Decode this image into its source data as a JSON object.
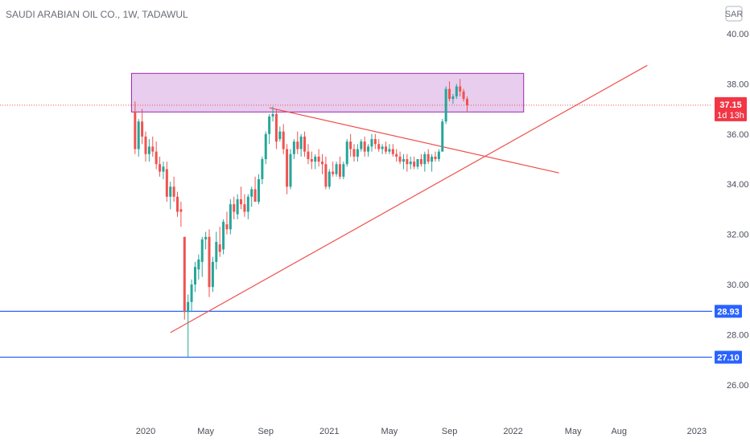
{
  "title": "SAUDI ARABIAN OIL CO., 1W, TADAWUL",
  "currency_label": "SAR",
  "price_tag": {
    "value": "37.15",
    "countdown": "1d 13h",
    "color": "#f23645"
  },
  "colors": {
    "up": "#26a69a",
    "down": "#ef5350",
    "hline": "#2962ff",
    "trend": "#f0504c",
    "zone_fill": "#e8cdee",
    "zone_stroke": "#9c27b0",
    "axis_text": "#4a4e5a"
  },
  "chart_data": {
    "type": "candlestick",
    "title": "SAUDI ARABIAN OIL CO., 1W, TADAWUL",
    "ylim": [
      25.5,
      40.5
    ],
    "y_ticks": [
      "26.00",
      "28.00",
      "30.00",
      "32.00",
      "34.00",
      "36.00",
      "38.00",
      "40.00"
    ],
    "x_ticks": [
      {
        "label": "2020",
        "x": 0
      },
      {
        "label": "May",
        "x": 17
      },
      {
        "label": "Sep",
        "x": 34
      },
      {
        "label": "2021",
        "x": 52
      },
      {
        "label": "May",
        "x": 69
      },
      {
        "label": "Sep",
        "x": 86
      },
      {
        "label": "2022",
        "x": 104
      },
      {
        "label": "May",
        "x": 121
      },
      {
        "label": "Aug",
        "x": 134
      },
      {
        "label": "2023",
        "x": 156
      }
    ],
    "candles": [
      [
        -3,
        36.9,
        37.3,
        35.2,
        35.4
      ],
      [
        -2,
        35.4,
        36.6,
        35.1,
        36.5
      ],
      [
        -1,
        36.5,
        37.0,
        35.6,
        35.9
      ],
      [
        0,
        35.9,
        36.1,
        34.9,
        35.2
      ],
      [
        1,
        35.2,
        35.8,
        34.9,
        35.5
      ],
      [
        2,
        35.5,
        35.9,
        35.1,
        35.3
      ],
      [
        3,
        35.3,
        35.7,
        34.6,
        34.8
      ],
      [
        4,
        34.8,
        35.1,
        34.3,
        34.5
      ],
      [
        5,
        34.5,
        34.9,
        34.2,
        34.7
      ],
      [
        6,
        34.6,
        34.9,
        33.3,
        33.5
      ],
      [
        7,
        33.5,
        34.1,
        33.0,
        33.9
      ],
      [
        8,
        33.9,
        34.3,
        33.3,
        33.5
      ],
      [
        9,
        33.5,
        33.7,
        32.7,
        32.9
      ],
      [
        10,
        33.0,
        33.3,
        32.3,
        32.9
      ],
      [
        11,
        31.9,
        31.9,
        28.6,
        28.9
      ],
      [
        12,
        28.9,
        29.6,
        27.1,
        29.3
      ],
      [
        13,
        29.3,
        30.2,
        28.9,
        30.0
      ],
      [
        14,
        30.0,
        30.9,
        29.7,
        30.7
      ],
      [
        15,
        30.6,
        31.2,
        30.2,
        31.0
      ],
      [
        16,
        30.9,
        31.9,
        30.3,
        31.8
      ],
      [
        17,
        31.8,
        32.1,
        31.4,
        31.9
      ],
      [
        18,
        31.9,
        32.2,
        29.5,
        29.9
      ],
      [
        19,
        29.9,
        31.1,
        29.7,
        30.9
      ],
      [
        20,
        30.9,
        32.1,
        30.6,
        31.7
      ],
      [
        21,
        31.6,
        32.3,
        31.1,
        31.3
      ],
      [
        22,
        31.4,
        32.6,
        31.2,
        32.5
      ],
      [
        23,
        32.4,
        32.9,
        32.0,
        32.2
      ],
      [
        24,
        32.2,
        33.4,
        32.0,
        33.2
      ],
      [
        25,
        33.2,
        33.5,
        32.6,
        32.9
      ],
      [
        26,
        32.8,
        33.6,
        32.6,
        33.4
      ],
      [
        27,
        33.4,
        33.9,
        33.0,
        33.2
      ],
      [
        28,
        33.2,
        33.6,
        32.7,
        32.9
      ],
      [
        29,
        32.9,
        33.6,
        32.6,
        33.5
      ],
      [
        30,
        33.5,
        33.9,
        33.1,
        33.8
      ],
      [
        31,
        33.8,
        34.3,
        33.4,
        33.3
      ],
      [
        32,
        33.3,
        34.4,
        33.2,
        34.2
      ],
      [
        33,
        34.2,
        35.1,
        34.0,
        35.0
      ],
      [
        34,
        35.0,
        36.1,
        34.8,
        36.0
      ],
      [
        35,
        36.0,
        36.8,
        35.6,
        36.7
      ],
      [
        36,
        36.7,
        37.1,
        36.5,
        36.8
      ],
      [
        37,
        36.8,
        37.0,
        35.4,
        35.7
      ],
      [
        38,
        35.8,
        36.3,
        35.7,
        36.1
      ],
      [
        39,
        36.1,
        36.4,
        35.2,
        35.4
      ],
      [
        40,
        35.4,
        35.6,
        33.6,
        33.9
      ],
      [
        41,
        33.9,
        35.4,
        33.8,
        35.2
      ],
      [
        42,
        35.2,
        35.8,
        35.0,
        35.7
      ],
      [
        43,
        35.7,
        36.1,
        35.2,
        35.4
      ],
      [
        44,
        35.4,
        36.0,
        35.1,
        35.9
      ],
      [
        45,
        35.9,
        36.1,
        35.1,
        35.3
      ],
      [
        46,
        35.3,
        35.6,
        34.8,
        35.0
      ],
      [
        47,
        35.0,
        35.3,
        34.6,
        34.9
      ],
      [
        48,
        34.9,
        35.2,
        34.6,
        35.1
      ],
      [
        49,
        35.1,
        35.4,
        34.7,
        34.9
      ],
      [
        50,
        34.9,
        35.2,
        34.4,
        34.8
      ],
      [
        51,
        34.8,
        35.1,
        33.8,
        33.9
      ],
      [
        52,
        33.9,
        34.6,
        33.8,
        34.5
      ],
      [
        53,
        34.5,
        34.9,
        34.3,
        34.4
      ],
      [
        54,
        34.4,
        34.9,
        34.3,
        34.8
      ],
      [
        55,
        34.8,
        35.1,
        34.2,
        34.3
      ],
      [
        56,
        34.3,
        34.9,
        34.2,
        34.8
      ],
      [
        57,
        34.8,
        35.8,
        34.7,
        35.7
      ],
      [
        58,
        35.7,
        36.0,
        35.1,
        35.4
      ],
      [
        59,
        35.4,
        35.6,
        34.9,
        35.1
      ],
      [
        60,
        35.1,
        35.6,
        34.9,
        35.4
      ],
      [
        61,
        35.4,
        35.8,
        35.3,
        35.7
      ],
      [
        62,
        35.7,
        35.9,
        35.1,
        35.3
      ],
      [
        63,
        35.3,
        35.6,
        35.1,
        35.5
      ],
      [
        64,
        35.5,
        36.0,
        35.3,
        35.8
      ],
      [
        65,
        35.8,
        36.0,
        35.4,
        35.6
      ],
      [
        66,
        35.6,
        35.8,
        35.3,
        35.4
      ],
      [
        67,
        35.4,
        35.6,
        35.2,
        35.5
      ],
      [
        68,
        35.5,
        35.7,
        35.2,
        35.3
      ],
      [
        69,
        35.3,
        35.6,
        35.2,
        35.4
      ],
      [
        70,
        35.4,
        35.6,
        35.1,
        35.2
      ],
      [
        71,
        35.2,
        35.4,
        34.9,
        35.1
      ],
      [
        72,
        35.1,
        35.3,
        34.8,
        34.9
      ],
      [
        73,
        34.9,
        35.2,
        34.6,
        35.0
      ],
      [
        74,
        35.0,
        35.2,
        34.5,
        34.8
      ],
      [
        75,
        34.8,
        35.1,
        34.6,
        34.9
      ],
      [
        76,
        34.9,
        35.1,
        34.6,
        34.7
      ],
      [
        77,
        34.7,
        35.0,
        34.6,
        35.0
      ],
      [
        78,
        35.0,
        35.2,
        34.7,
        34.8
      ],
      [
        79,
        34.8,
        35.3,
        34.5,
        35.2
      ],
      [
        80,
        35.2,
        35.4,
        34.8,
        34.9
      ],
      [
        81,
        34.9,
        35.2,
        34.5,
        35.1
      ],
      [
        82,
        35.1,
        35.3,
        34.9,
        35.0
      ],
      [
        83,
        35.0,
        35.4,
        34.9,
        35.3
      ],
      [
        84,
        35.3,
        36.6,
        35.3,
        36.5
      ],
      [
        85,
        36.5,
        37.9,
        36.4,
        37.8
      ],
      [
        86,
        37.8,
        38.1,
        37.3,
        37.4
      ],
      [
        87,
        37.4,
        37.6,
        37.2,
        37.5
      ],
      [
        88,
        37.5,
        38.0,
        37.4,
        37.9
      ],
      [
        89,
        37.9,
        38.2,
        37.5,
        37.7
      ],
      [
        90,
        37.7,
        37.8,
        37.3,
        37.4
      ],
      [
        91,
        37.4,
        37.5,
        36.9,
        37.15
      ]
    ],
    "horizontal_lines": [
      28.93,
      27.1
    ],
    "resistance_zone": {
      "x_from": -4,
      "x_to": 107,
      "y_low": 36.88,
      "y_high": 38.42
    },
    "trendlines": [
      {
        "from": [
          7,
          28.08
        ],
        "to": [
          142,
          38.74
        ]
      },
      {
        "from": [
          35,
          37.05
        ],
        "to": [
          117,
          34.45
        ]
      }
    ],
    "last_price": 37.15,
    "price_dotted_line": 37.15
  }
}
